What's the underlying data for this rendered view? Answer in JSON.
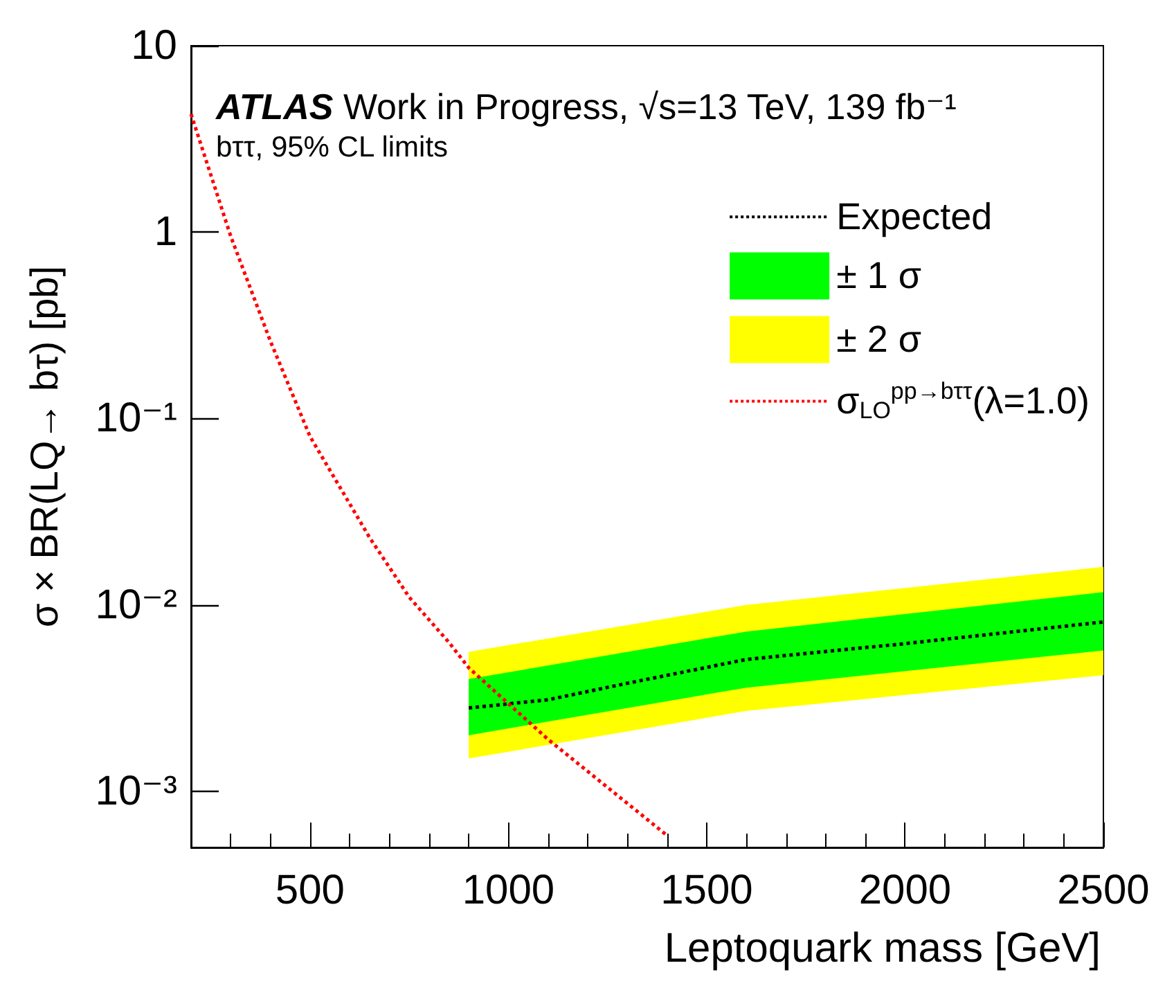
{
  "chart_data": {
    "type": "line",
    "title": "ATLAS",
    "subtitle": "Work in Progress, √s=13 TeV, 139 fb⁻¹",
    "annotations": [
      "bττ, 95% CL limits"
    ],
    "xlabel": "Leptoquark mass [GeV]",
    "ylabel": "σ × BR(LQ→ bτ) [pb]",
    "xlim": [
      200,
      2500
    ],
    "xticks": [
      500,
      1000,
      1500,
      2000,
      2500
    ],
    "ylim": [
      0.0005,
      10
    ],
    "yticks": [
      {
        "value": 0.001,
        "label": "10⁻³"
      },
      {
        "value": 0.01,
        "label": "10⁻²"
      },
      {
        "value": 0.1,
        "label": "10⁻¹"
      },
      1,
      10
    ],
    "log": "y",
    "grid": false,
    "legend": "top right",
    "marker": "none",
    "series": [
      {
        "name": "Expected",
        "color": "#000000",
        "line_style": "dotted",
        "x": [
          900,
          1100,
          1300,
          1600,
          2000,
          2500
        ],
        "values": [
          0.0028,
          0.0031,
          0.0038,
          0.0051,
          0.0062,
          0.0081
        ]
      },
      {
        "name": "± 1 σ",
        "color": "#00ff00",
        "x": [
          900,
          1600,
          2500
        ],
        "values": [
          null,
          null,
          null
        ],
        "lower": [
          0.002,
          0.0036,
          0.0057
        ],
        "upper": [
          0.004,
          0.0072,
          0.0117
        ]
      },
      {
        "name": "± 2 σ",
        "color": "#ffff00",
        "x": [
          900,
          1600,
          2500
        ],
        "values": [
          null,
          null,
          null
        ],
        "lower": [
          0.0015,
          0.0027,
          0.0042
        ],
        "upper": [
          0.0056,
          0.01,
          0.016
        ]
      },
      {
        "name": "σ$_{LO}$$^{pp→bττ}$(λ=1.0)",
        "color": "#ff0000",
        "line_style": "dotted",
        "x": [
          200,
          300,
          400,
          500,
          650,
          750,
          850,
          900,
          1100,
          1400
        ],
        "values": [
          4.3,
          0.95,
          0.26,
          0.08,
          0.023,
          0.011,
          0.0063,
          0.0046,
          0.0019,
          0.00058
        ]
      }
    ]
  }
}
